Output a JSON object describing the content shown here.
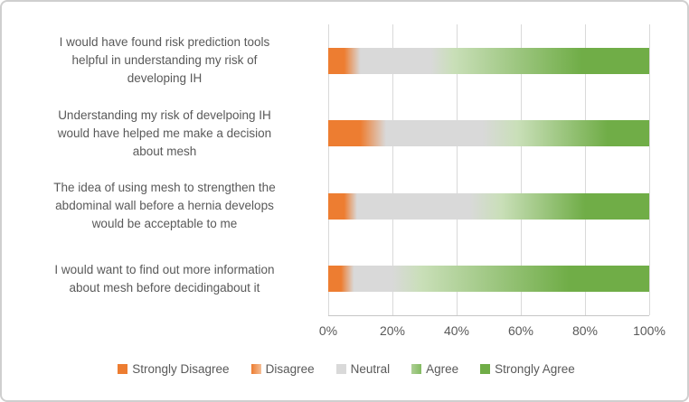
{
  "figure": {
    "background": "#ffffff",
    "border_color": "#cfcfcf"
  },
  "chart_data": {
    "type": "bar",
    "orientation": "horizontal",
    "stacked": true,
    "title": "",
    "xlabel": "",
    "ylabel": "",
    "x_axis": {
      "min": 0,
      "max": 100,
      "tick_labels": [
        "0%",
        "20%",
        "40%",
        "60%",
        "80%",
        "100%"
      ],
      "grid": true
    },
    "categories": [
      "I would have found risk prediction tools\nhelpful in understanding my risk of\ndeveloping IH",
      "Understanding my risk of develpoing IH\nwould have helped me make a decision\nabout mesh",
      "The idea of using mesh to strengthen the\nabdominal wall before a hernia develops\nwould be acceptable to me",
      "I would want to find out more information\nabout mesh before decidingabout it"
    ],
    "series": [
      {
        "name": "Strongly Disagree",
        "color": "#ED7D31",
        "values": [
          2,
          7,
          2,
          2
        ]
      },
      {
        "name": "Disagree",
        "color": "#F09A5F",
        "values": [
          5,
          7,
          5,
          4
        ]
      },
      {
        "name": "Neutral",
        "color": "#D9D9D9",
        "values": [
          28,
          39,
          42,
          18
        ]
      },
      {
        "name": "Agree",
        "color": "#9CC97E",
        "values": [
          31,
          20,
          18,
          28
        ]
      },
      {
        "name": "Strongly Agree",
        "color": "#70AD47",
        "values": [
          34,
          27,
          33,
          48
        ]
      }
    ],
    "bar_gradient_stops": [
      {
        "orange_end": 5,
        "gray_start": 10,
        "gray_end": 32,
        "green_start": 39,
        "dark_green_start": 79
      },
      {
        "orange_end": 10,
        "gray_start": 18,
        "gray_end": 48,
        "green_start": 59,
        "dark_green_start": 87
      },
      {
        "orange_end": 5,
        "gray_start": 9,
        "gray_end": 44,
        "green_start": 54,
        "dark_green_start": 80
      },
      {
        "orange_end": 4,
        "gray_start": 8,
        "gray_end": 20,
        "green_start": 29,
        "dark_green_start": 75
      }
    ],
    "colors": {
      "orange": "#ED7D31",
      "gray": "#D9D9D9",
      "light_green": "#C9DFB8",
      "dark_green": "#70AD47",
      "gridline": "#D9D9D9",
      "text": "#595959"
    },
    "legend_position": "bottom"
  },
  "legend": {
    "items": [
      {
        "label": "Strongly Disagree",
        "swatch": [
          "#ED7D31"
        ]
      },
      {
        "label": "Disagree",
        "swatch": [
          "#ED7D31",
          "#F5BE96"
        ]
      },
      {
        "label": "Neutral",
        "swatch": [
          "#D9D9D9"
        ]
      },
      {
        "label": "Agree",
        "swatch": [
          "#AECF96",
          "#84BB62"
        ]
      },
      {
        "label": "Strongly Agree",
        "swatch": [
          "#70AD47"
        ]
      }
    ]
  }
}
